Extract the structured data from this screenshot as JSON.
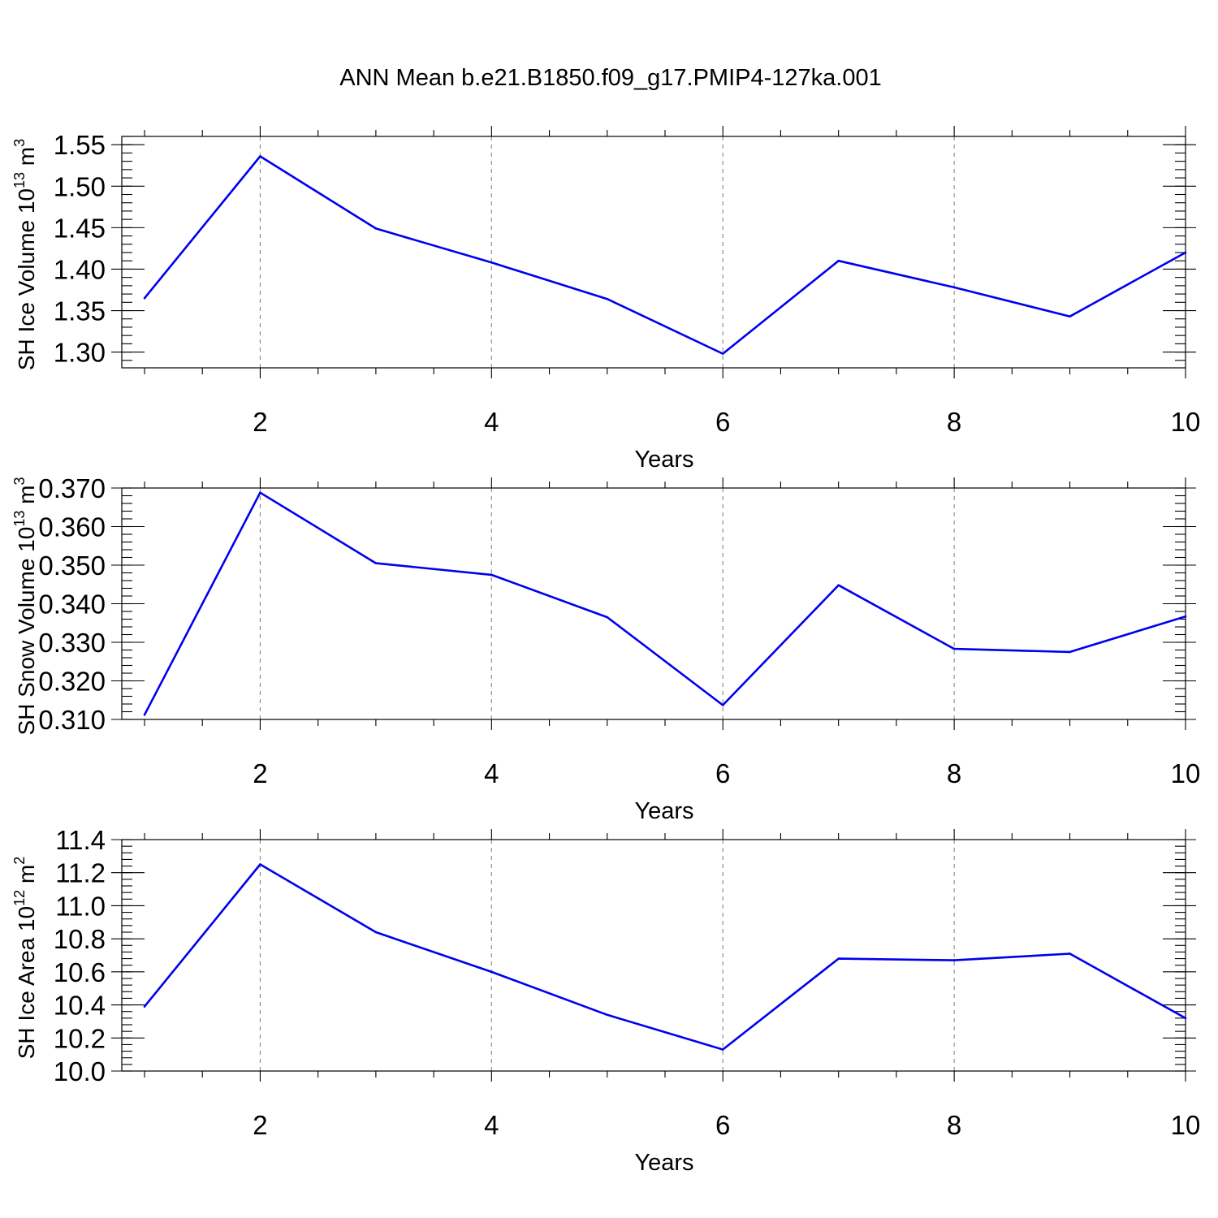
{
  "figure": {
    "title": "ANN Mean b.e21.B1850.f09_g17.PMIP4-127ka.001"
  },
  "chart_data": [
    {
      "type": "line",
      "xlabel": "Years",
      "ylabel": {
        "text": "SH Ice Volume 10",
        "sup1": "13",
        "mid": " m",
        "sup2": "3"
      },
      "x": [
        1,
        2,
        3,
        4,
        5,
        6,
        7,
        8,
        9,
        10
      ],
      "series": [
        {
          "values": [
            1.365,
            1.536,
            1.449,
            1.408,
            1.364,
            1.298,
            1.41,
            1.378,
            1.343,
            1.42
          ],
          "color": "#0000ee"
        }
      ],
      "xlim": [
        1,
        10
      ],
      "ylim": [
        1.281,
        1.56
      ],
      "xticks": [
        2,
        4,
        6,
        8,
        10
      ],
      "xtick_labels": [
        "2",
        "4",
        "6",
        "8",
        "10"
      ],
      "yticks": [
        1.3,
        1.35,
        1.4,
        1.45,
        1.5,
        1.55
      ],
      "ytick_labels": [
        "1.30",
        "1.35",
        "1.40",
        "1.45",
        "1.50",
        "1.55"
      ],
      "y_minor_step": 0.01,
      "grid": "vertical dashed at major x ticks"
    },
    {
      "type": "line",
      "xlabel": "Years",
      "ylabel": {
        "text": "SH Snow Volume 10",
        "sup1": "13",
        "mid": " m",
        "sup2": "3"
      },
      "x": [
        1,
        2,
        3,
        4,
        5,
        6,
        7,
        8,
        9,
        10
      ],
      "series": [
        {
          "values": [
            0.3112,
            0.3688,
            0.3505,
            0.3475,
            0.3365,
            0.3137,
            0.3448,
            0.3283,
            0.3275,
            0.3367
          ],
          "color": "#0000ee"
        }
      ],
      "xlim": [
        1,
        10
      ],
      "ylim": [
        0.31,
        0.37
      ],
      "xticks": [
        2,
        4,
        6,
        8,
        10
      ],
      "xtick_labels": [
        "2",
        "4",
        "6",
        "8",
        "10"
      ],
      "yticks": [
        0.31,
        0.32,
        0.33,
        0.34,
        0.35,
        0.36,
        0.37
      ],
      "ytick_labels": [
        "0.310",
        "0.320",
        "0.330",
        "0.340",
        "0.350",
        "0.360",
        "0.370"
      ],
      "y_minor_step": 0.002,
      "grid": "vertical dashed at major x ticks"
    },
    {
      "type": "line",
      "xlabel": "Years",
      "ylabel": {
        "text": "SH Ice Area 10",
        "sup1": "12",
        "mid": " m",
        "sup2": "2"
      },
      "x": [
        1,
        2,
        3,
        4,
        5,
        6,
        7,
        8,
        9,
        10
      ],
      "series": [
        {
          "values": [
            10.39,
            11.25,
            10.84,
            10.6,
            10.34,
            10.13,
            10.68,
            10.67,
            10.71,
            10.32
          ],
          "color": "#0000ee"
        }
      ],
      "xlim": [
        1,
        10
      ],
      "ylim": [
        10.0,
        11.4
      ],
      "xticks": [
        2,
        4,
        6,
        8,
        10
      ],
      "xtick_labels": [
        "2",
        "4",
        "6",
        "8",
        "10"
      ],
      "yticks": [
        10.0,
        10.2,
        10.4,
        10.6,
        10.8,
        11.0,
        11.2,
        11.4
      ],
      "ytick_labels": [
        "10.0",
        "10.2",
        "10.4",
        "10.6",
        "10.8",
        "11.0",
        "11.2",
        "11.4"
      ],
      "y_minor_step": 0.04,
      "grid": "vertical dashed at major x ticks"
    }
  ]
}
